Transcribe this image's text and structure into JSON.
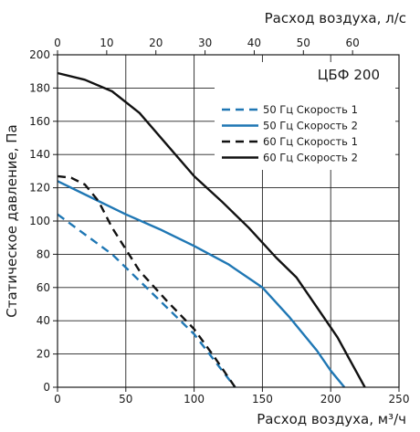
{
  "chart_data": {
    "type": "line",
    "title": "ЦБФ 200",
    "xlabel": "Расход воздуха, м³/ч",
    "x2label": "Расход воздуха, л/с",
    "ylabel": "Статическое давление, Па",
    "xlim": [
      0,
      250
    ],
    "x2lim": [
      0,
      69.44
    ],
    "ylim": [
      0,
      200
    ],
    "xticks": [
      0,
      50,
      100,
      150,
      200,
      250
    ],
    "x2ticks": [
      0,
      10,
      20,
      30,
      40,
      50,
      60
    ],
    "yticks": [
      0,
      20,
      40,
      60,
      80,
      100,
      120,
      140,
      160,
      180,
      200
    ],
    "grid": true,
    "legend_position": "top-right",
    "series": [
      {
        "name": "50 Гц Скорость 1",
        "color": "#1f77b4",
        "dash": "dashed",
        "x": [
          0,
          20,
          40,
          60,
          80,
          100,
          115,
          130
        ],
        "y": [
          104,
          92,
          80,
          64,
          48,
          32,
          16,
          0
        ]
      },
      {
        "name": "50 Гц Скорость 2",
        "color": "#1f77b4",
        "dash": "solid",
        "x": [
          0,
          25,
          50,
          75,
          100,
          125,
          150,
          170,
          190,
          200,
          210
        ],
        "y": [
          124,
          114,
          104,
          95,
          85,
          74,
          60,
          42,
          22,
          10,
          0
        ]
      },
      {
        "name": "60 Гц Скорость 1",
        "color": "#111111",
        "dash": "dashed",
        "x": [
          0,
          10,
          20,
          30,
          40,
          60,
          80,
          100,
          115,
          130
        ],
        "y": [
          127,
          126,
          122,
          112,
          96,
          70,
          52,
          35,
          18,
          0
        ]
      },
      {
        "name": "60 Гц Скорость 2",
        "color": "#111111",
        "dash": "solid",
        "x": [
          0,
          20,
          40,
          60,
          80,
          100,
          120,
          140,
          160,
          175,
          190,
          205,
          215,
          225
        ],
        "y": [
          189,
          185,
          178,
          165,
          146,
          127,
          112,
          96,
          78,
          66,
          48,
          30,
          15,
          0
        ]
      }
    ]
  }
}
